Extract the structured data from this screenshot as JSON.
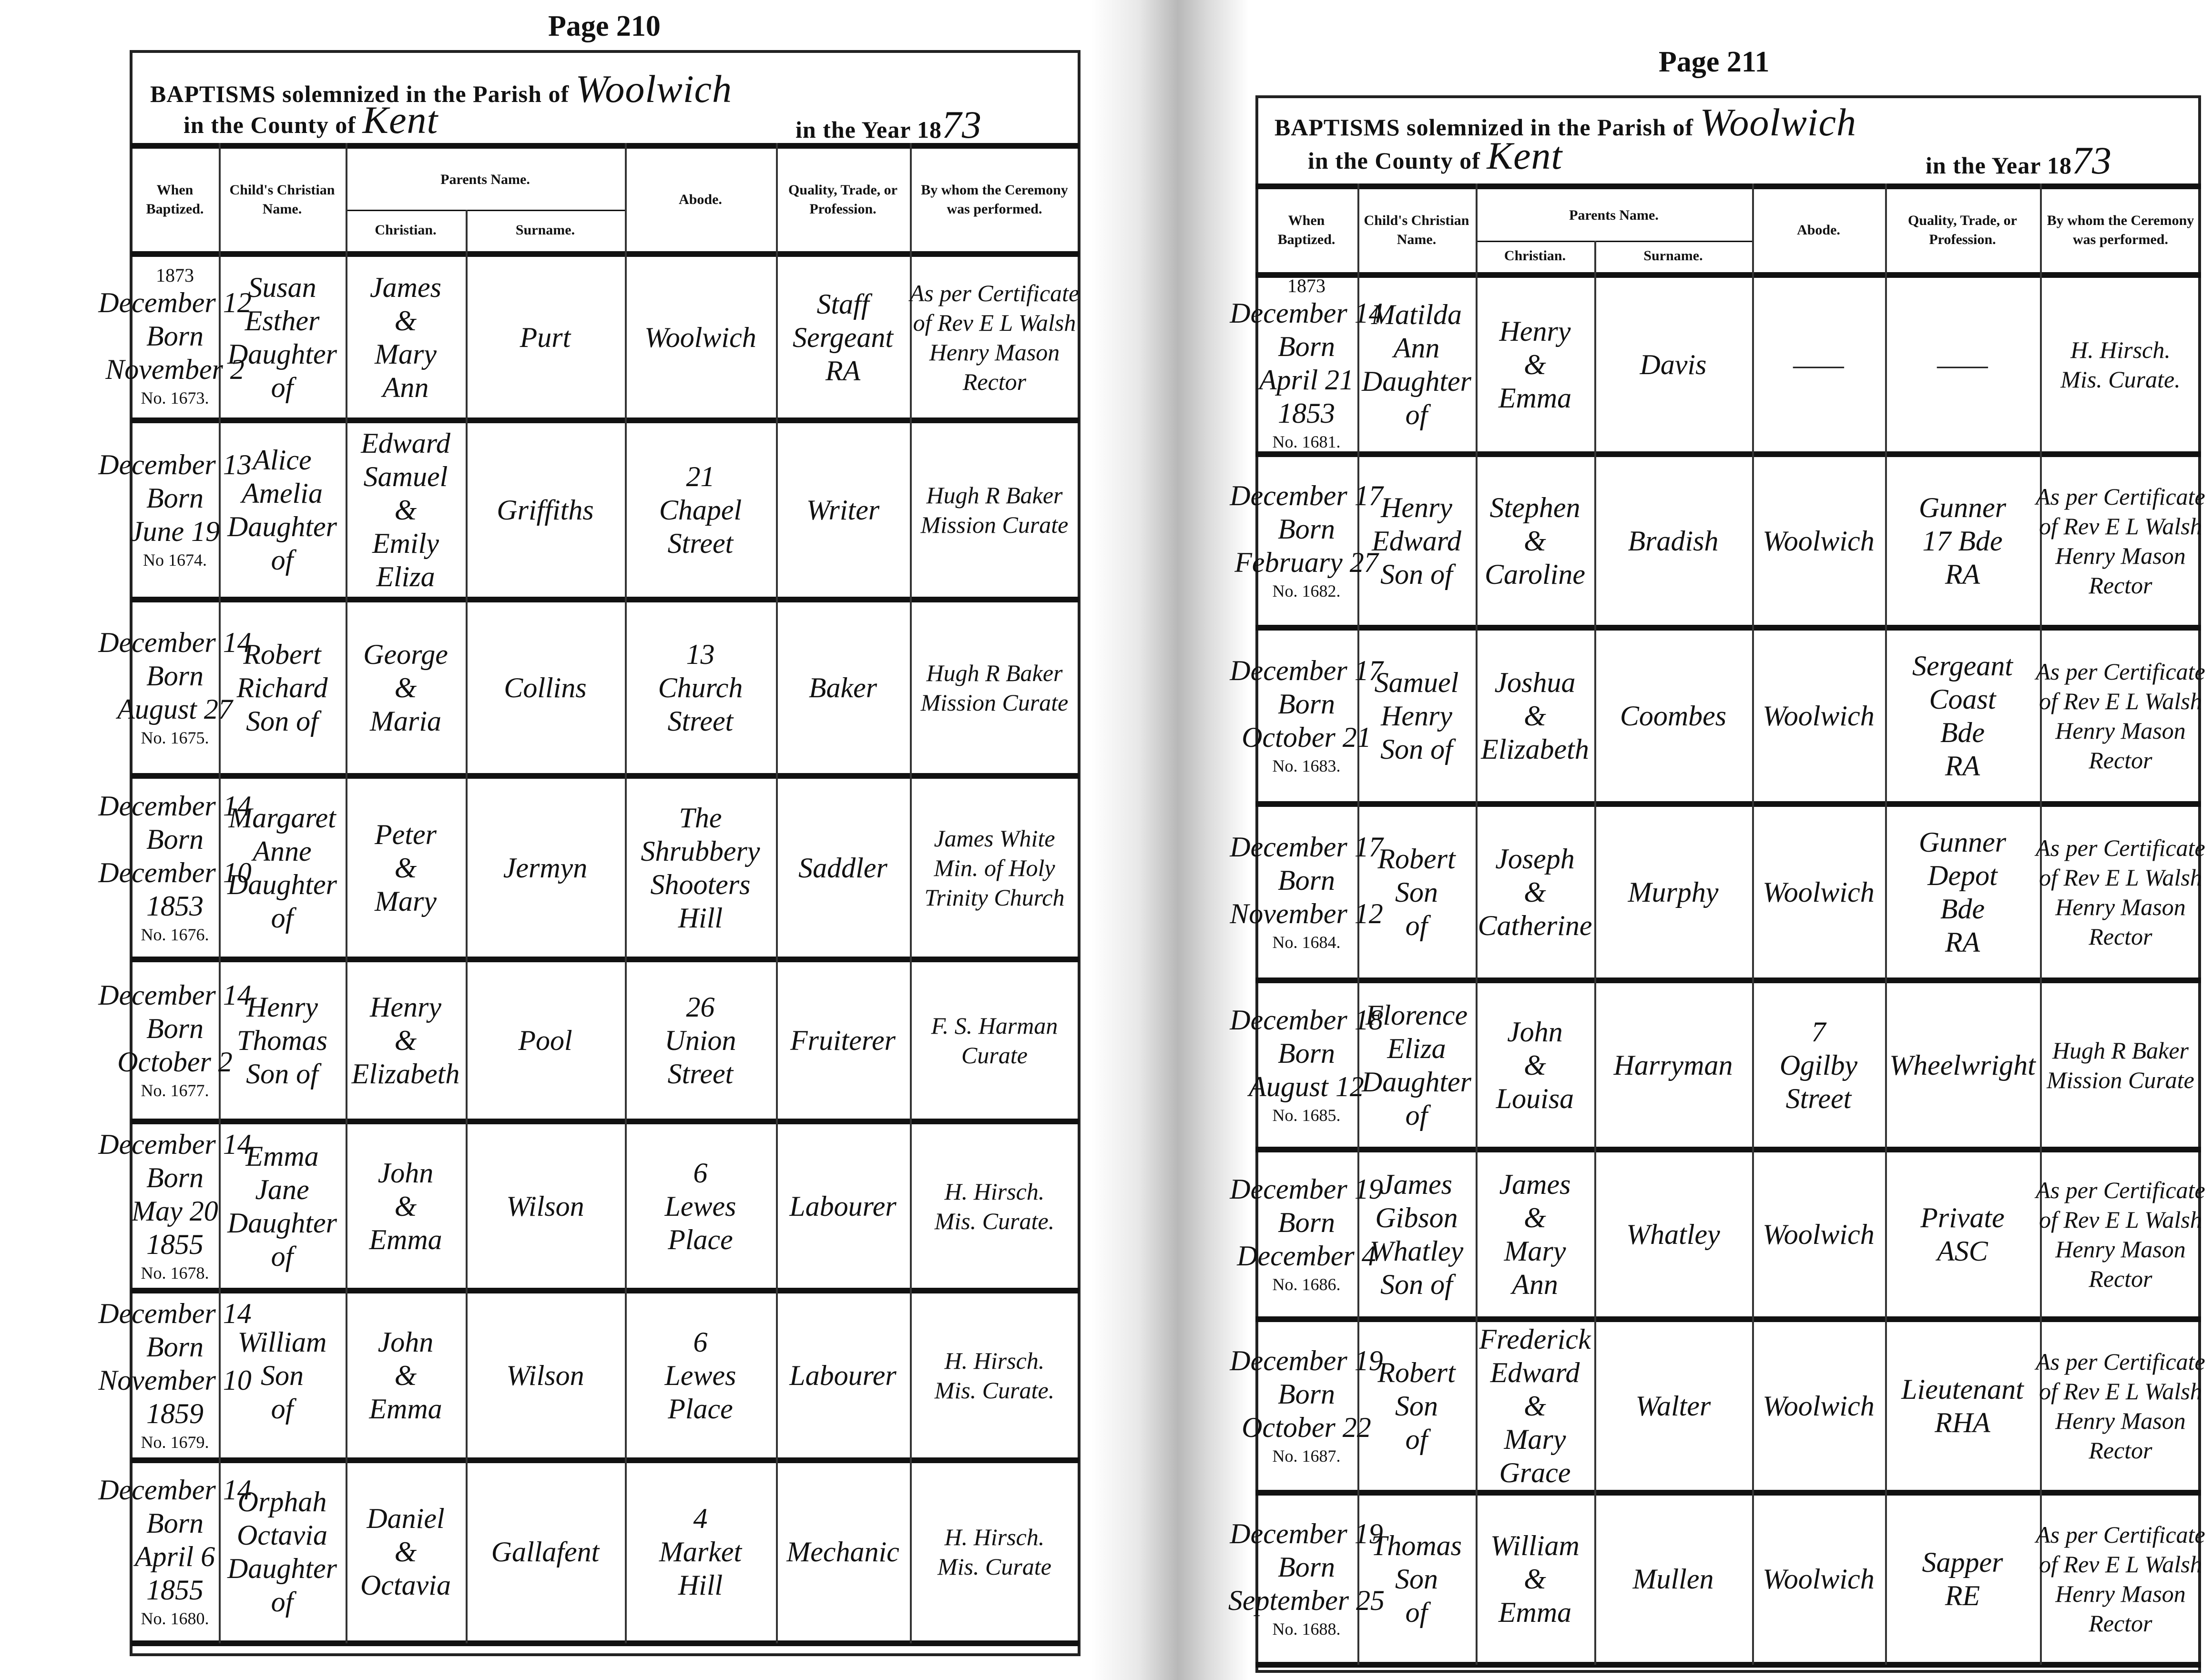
{
  "headers": {
    "when": "When Baptized.",
    "child": "Child's Christian Name.",
    "parents": "Parents Name.",
    "christian": "Christian.",
    "surname": "Surname.",
    "abode": "Abode.",
    "quality": "Quality, Trade, or Profession.",
    "by_whom": "By whom the Ceremony was performed."
  },
  "title": {
    "baptisms": "BAPTISMS",
    "solemnized": "solemnized in the Parish of",
    "county_prefix": "in the County of",
    "year_prefix": "in the Year 18"
  },
  "pages": [
    {
      "page_label": "Page 210",
      "parish": "Woolwich",
      "county": "Kent",
      "year_suffix": "73",
      "entries": [
        {
          "year": "1873",
          "when": [
            "December 12",
            "Born",
            "November 2"
          ],
          "no": "No. 1673.",
          "child": [
            "Susan",
            "Esther",
            "Daughter",
            "of"
          ],
          "christian": [
            "James",
            "&",
            "Mary",
            "Ann"
          ],
          "surname": [
            "Purt"
          ],
          "abode": [
            "Woolwich"
          ],
          "quality": [
            "Staff",
            "Sergeant",
            "RA"
          ],
          "by_whom": [
            "As per Certificate",
            "of Rev E L Walsh",
            "Henry Mason",
            "Rector"
          ]
        },
        {
          "when": [
            "December 13",
            "Born",
            "June 19"
          ],
          "no": "No 1674.",
          "child": [
            "Alice",
            "Amelia",
            "Daughter",
            "of"
          ],
          "christian": [
            "Edward",
            "Samuel",
            "&",
            "Emily",
            "Eliza"
          ],
          "surname": [
            "Griffiths"
          ],
          "abode": [
            "21",
            "Chapel",
            "Street"
          ],
          "quality": [
            "Writer"
          ],
          "by_whom": [
            "Hugh R Baker",
            "Mission Curate"
          ]
        },
        {
          "when": [
            "December 14",
            "Born",
            "August 27"
          ],
          "no": "No. 1675.",
          "child": [
            "Robert",
            "Richard",
            "Son of"
          ],
          "christian": [
            "George",
            "&",
            "Maria"
          ],
          "surname": [
            "Collins"
          ],
          "abode": [
            "13",
            "Church",
            "Street"
          ],
          "quality": [
            "Baker"
          ],
          "by_whom": [
            "Hugh R Baker",
            "Mission Curate"
          ]
        },
        {
          "when": [
            "December 14",
            "Born",
            "December 10",
            "1853"
          ],
          "no": "No. 1676.",
          "child": [
            "Margaret",
            "Anne",
            "Daughter",
            "of"
          ],
          "christian": [
            "Peter",
            "&",
            "Mary"
          ],
          "surname": [
            "Jermyn"
          ],
          "abode": [
            "The",
            "Shrubbery",
            "Shooters",
            "Hill"
          ],
          "quality": [
            "Saddler"
          ],
          "by_whom": [
            "James White",
            "Min. of Holy",
            "Trinity Church"
          ]
        },
        {
          "when": [
            "December 14",
            "Born",
            "October 2"
          ],
          "no": "No. 1677.",
          "child": [
            "Henry",
            "Thomas",
            "Son of"
          ],
          "christian": [
            "Henry",
            "&",
            "Elizabeth"
          ],
          "surname": [
            "Pool"
          ],
          "abode": [
            "26",
            "Union",
            "Street"
          ],
          "quality": [
            "Fruiterer"
          ],
          "by_whom": [
            "F. S. Harman",
            "Curate"
          ]
        },
        {
          "when": [
            "December 14",
            "Born",
            "May 20",
            "1855"
          ],
          "no": "No. 1678.",
          "child": [
            "Emma",
            "Jane",
            "Daughter",
            "of"
          ],
          "christian": [
            "John",
            "&",
            "Emma"
          ],
          "surname": [
            "Wilson"
          ],
          "abode": [
            "6",
            "Lewes",
            "Place"
          ],
          "quality": [
            "Labourer"
          ],
          "by_whom": [
            "H. Hirsch.",
            "Mis. Curate."
          ]
        },
        {
          "when": [
            "December 14",
            "Born",
            "November 10",
            "1859"
          ],
          "no": "No. 1679.",
          "child": [
            "William",
            "Son",
            "of"
          ],
          "christian": [
            "John",
            "&",
            "Emma"
          ],
          "surname": [
            "Wilson"
          ],
          "abode": [
            "6",
            "Lewes",
            "Place"
          ],
          "quality": [
            "Labourer"
          ],
          "by_whom": [
            "H. Hirsch.",
            "Mis. Curate."
          ]
        },
        {
          "when": [
            "December 14",
            "Born",
            "April 6",
            "1855"
          ],
          "no": "No. 1680.",
          "child": [
            "Orphah",
            "Octavia",
            "Daughter",
            "of"
          ],
          "christian": [
            "Daniel",
            "&",
            "Octavia"
          ],
          "surname": [
            "Gallafent"
          ],
          "abode": [
            "4",
            "Market",
            "Hill"
          ],
          "quality": [
            "Mechanic"
          ],
          "by_whom": [
            "H. Hirsch.",
            "Mis. Curate"
          ]
        }
      ]
    },
    {
      "page_label": "Page 211",
      "parish": "Woolwich",
      "county": "Kent",
      "year_suffix": "73",
      "entries": [
        {
          "year": "1873",
          "when": [
            "December 14",
            "Born",
            "April 21",
            "1853"
          ],
          "no": "No. 1681.",
          "child": [
            "Matilda",
            "Ann",
            "Daughter",
            "of"
          ],
          "christian": [
            "Henry",
            "&",
            "Emma"
          ],
          "surname": [
            "Davis"
          ],
          "abode": [
            "——"
          ],
          "quality": [
            "——"
          ],
          "by_whom": [
            "H. Hirsch.",
            "Mis. Curate."
          ]
        },
        {
          "when": [
            "December 17",
            "Born",
            "February 27"
          ],
          "no": "No. 1682.",
          "child": [
            "Henry",
            "Edward",
            "Son of"
          ],
          "christian": [
            "Stephen",
            "&",
            "Caroline"
          ],
          "surname": [
            "Bradish"
          ],
          "abode": [
            "Woolwich"
          ],
          "quality": [
            "Gunner",
            "17 Bde",
            "RA"
          ],
          "by_whom": [
            "As per Certificate",
            "of Rev E L Walsh",
            "Henry Mason",
            "Rector"
          ]
        },
        {
          "when": [
            "December 17",
            "Born",
            "October 21"
          ],
          "no": "No. 1683.",
          "child": [
            "Samuel",
            "Henry",
            "Son of"
          ],
          "christian": [
            "Joshua",
            "&",
            "Elizabeth"
          ],
          "surname": [
            "Coombes"
          ],
          "abode": [
            "Woolwich"
          ],
          "quality": [
            "Sergeant",
            "Coast",
            "Bde",
            "RA"
          ],
          "by_whom": [
            "As per Certificate",
            "of Rev E L Walsh",
            "Henry Mason",
            "Rector"
          ]
        },
        {
          "when": [
            "December 17",
            "Born",
            "November 12"
          ],
          "no": "No. 1684.",
          "child": [
            "Robert",
            "Son",
            "of"
          ],
          "christian": [
            "Joseph",
            "&",
            "Catherine"
          ],
          "surname": [
            "Murphy"
          ],
          "abode": [
            "Woolwich"
          ],
          "quality": [
            "Gunner",
            "Depot",
            "Bde",
            "RA"
          ],
          "by_whom": [
            "As per Certificate",
            "of Rev E L Walsh",
            "Henry Mason",
            "Rector"
          ]
        },
        {
          "when": [
            "December 18",
            "Born",
            "August 12"
          ],
          "no": "No. 1685.",
          "child": [
            "Florence",
            "Eliza",
            "Daughter",
            "of"
          ],
          "christian": [
            "John",
            "&",
            "Louisa"
          ],
          "surname": [
            "Harryman"
          ],
          "abode": [
            "7",
            "Ogilby",
            "Street"
          ],
          "quality": [
            "Wheelwright"
          ],
          "by_whom": [
            "Hugh R Baker",
            "Mission Curate"
          ]
        },
        {
          "when": [
            "December 19",
            "Born",
            "December 4"
          ],
          "no": "No. 1686.",
          "child": [
            "James",
            "Gibson",
            "Whatley",
            "Son of"
          ],
          "christian": [
            "James",
            "&",
            "Mary",
            "Ann"
          ],
          "surname": [
            "Whatley"
          ],
          "abode": [
            "Woolwich"
          ],
          "quality": [
            "Private",
            "ASC"
          ],
          "by_whom": [
            "As per Certificate",
            "of Rev E L Walsh",
            "Henry Mason",
            "Rector"
          ]
        },
        {
          "when": [
            "December 19",
            "Born",
            "October 22"
          ],
          "no": "No. 1687.",
          "child": [
            "Robert",
            "Son",
            "of"
          ],
          "christian": [
            "Frederick",
            "Edward",
            "&",
            "Mary",
            "Grace"
          ],
          "surname": [
            "Walter"
          ],
          "abode": [
            "Woolwich"
          ],
          "quality": [
            "Lieutenant",
            "RHA"
          ],
          "by_whom": [
            "As per Certificate",
            "of Rev E L Walsh",
            "Henry Mason",
            "Rector"
          ]
        },
        {
          "when": [
            "December 19",
            "Born",
            "September 25"
          ],
          "no": "No. 1688.",
          "child": [
            "Thomas",
            "Son",
            "of"
          ],
          "christian": [
            "William",
            "&",
            "Emma"
          ],
          "surname": [
            "Mullen"
          ],
          "abode": [
            "Woolwich"
          ],
          "quality": [
            "Sapper",
            "RE"
          ],
          "by_whom": [
            "As per Certificate",
            "of Rev E L Walsh",
            "Henry Mason",
            "Rector"
          ]
        }
      ]
    }
  ]
}
